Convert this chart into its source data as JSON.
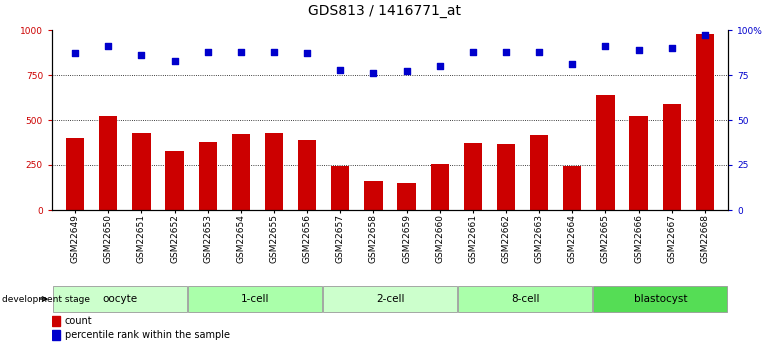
{
  "title": "GDS813 / 1416771_at",
  "samples": [
    "GSM22649",
    "GSM22650",
    "GSM22651",
    "GSM22652",
    "GSM22653",
    "GSM22654",
    "GSM22655",
    "GSM22656",
    "GSM22657",
    "GSM22658",
    "GSM22659",
    "GSM22660",
    "GSM22661",
    "GSM22662",
    "GSM22663",
    "GSM22664",
    "GSM22665",
    "GSM22666",
    "GSM22667",
    "GSM22668"
  ],
  "counts": [
    400,
    520,
    430,
    330,
    380,
    420,
    430,
    390,
    245,
    160,
    150,
    255,
    370,
    365,
    415,
    245,
    640,
    520,
    590,
    980
  ],
  "percentiles": [
    87,
    91,
    86,
    83,
    88,
    88,
    88,
    87,
    78,
    76,
    77,
    80,
    88,
    88,
    88,
    81,
    91,
    89,
    90,
    97
  ],
  "groups": [
    {
      "label": "oocyte",
      "start": 0,
      "end": 3,
      "color": "#ccffcc"
    },
    {
      "label": "1-cell",
      "start": 4,
      "end": 7,
      "color": "#aaffaa"
    },
    {
      "label": "2-cell",
      "start": 8,
      "end": 11,
      "color": "#ccffcc"
    },
    {
      "label": "8-cell",
      "start": 12,
      "end": 15,
      "color": "#aaffaa"
    },
    {
      "label": "blastocyst",
      "start": 16,
      "end": 19,
      "color": "#55dd55"
    }
  ],
  "bar_color": "#cc0000",
  "dot_color": "#0000cc",
  "left_ylim": [
    0,
    1000
  ],
  "right_ylim": [
    0,
    100
  ],
  "left_yticks": [
    0,
    250,
    500,
    750,
    1000
  ],
  "right_yticks": [
    0,
    25,
    50,
    75,
    100
  ],
  "left_ytick_labels": [
    "0",
    "250",
    "500",
    "750",
    "1000"
  ],
  "right_ytick_labels": [
    "0",
    "25",
    "50",
    "75",
    "100%"
  ],
  "grid_values": [
    250,
    500,
    750
  ],
  "dev_stage_label": "development stage",
  "legend_count_label": "count",
  "legend_pct_label": "percentile rank within the sample",
  "title_fontsize": 10,
  "tick_fontsize": 6.5,
  "group_label_fontsize": 7.5,
  "legend_fontsize": 7
}
